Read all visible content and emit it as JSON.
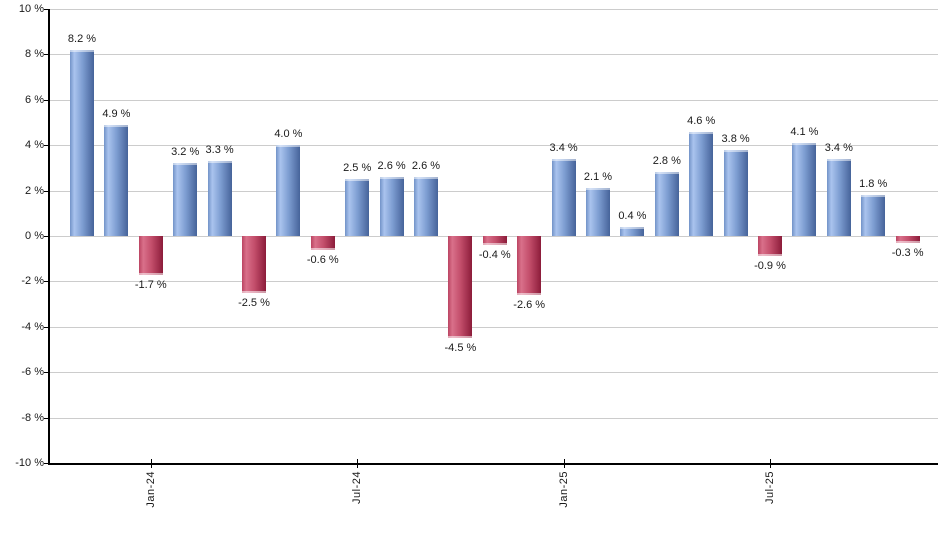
{
  "chart": {
    "background": "#ffffff"
  },
  "chart_data": {
    "type": "bar",
    "title": "",
    "xlabel": "",
    "ylabel": "",
    "ylim": [
      -10,
      10
    ],
    "y_tick_step": 2,
    "grid": true,
    "legend_position": "none",
    "y_tick_labels": [
      "10 %",
      "8 %",
      "6 %",
      "4 %",
      "2 %",
      "0 %",
      "-2 %",
      "-4 %",
      "-6 %",
      "-8 %",
      "-10 %"
    ],
    "x_tick_labels": [
      {
        "label": "Jan-24",
        "bar_index": 2
      },
      {
        "label": "Jul-24",
        "bar_index": 8
      },
      {
        "label": "Jan-25",
        "bar_index": 14
      },
      {
        "label": "Jul-25",
        "bar_index": 20
      }
    ],
    "values": [
      8.2,
      4.9,
      -1.7,
      3.2,
      3.3,
      -2.5,
      4.0,
      -0.6,
      2.5,
      2.6,
      2.6,
      -4.5,
      -0.4,
      -2.6,
      3.4,
      2.1,
      0.4,
      2.8,
      4.6,
      3.8,
      -0.9,
      4.1,
      3.4,
      1.8,
      -0.3
    ],
    "bar_labels": [
      "8.2 %",
      "4.9 %",
      "-1.7 %",
      "3.2 %",
      "3.3 %",
      "-2.5 %",
      "4.0 %",
      "-0.6 %",
      "2.5 %",
      "2.6 %",
      "2.6 %",
      "-4.5 %",
      "-0.4 %",
      "-2.6 %",
      "3.4 %",
      "2.1 %",
      "0.4 %",
      "2.8 %",
      "4.6 %",
      "3.8 %",
      "-0.9 %",
      "4.1 %",
      "3.4 %",
      "1.8 %",
      "-0.3 %"
    ],
    "colors": {
      "positive_edge": "#7292c8",
      "positive_highlight": "#aac4ee",
      "positive_mid": "#7e9ed2",
      "positive_dark": "#46639a",
      "negative_edge": "#bb4462",
      "negative_highlight": "#d9708a",
      "negative_mid": "#c34e6b",
      "negative_dark": "#8c1c3a",
      "gridline": "#cccccc",
      "axis": "#000000",
      "text": "#1a1a1a"
    }
  }
}
